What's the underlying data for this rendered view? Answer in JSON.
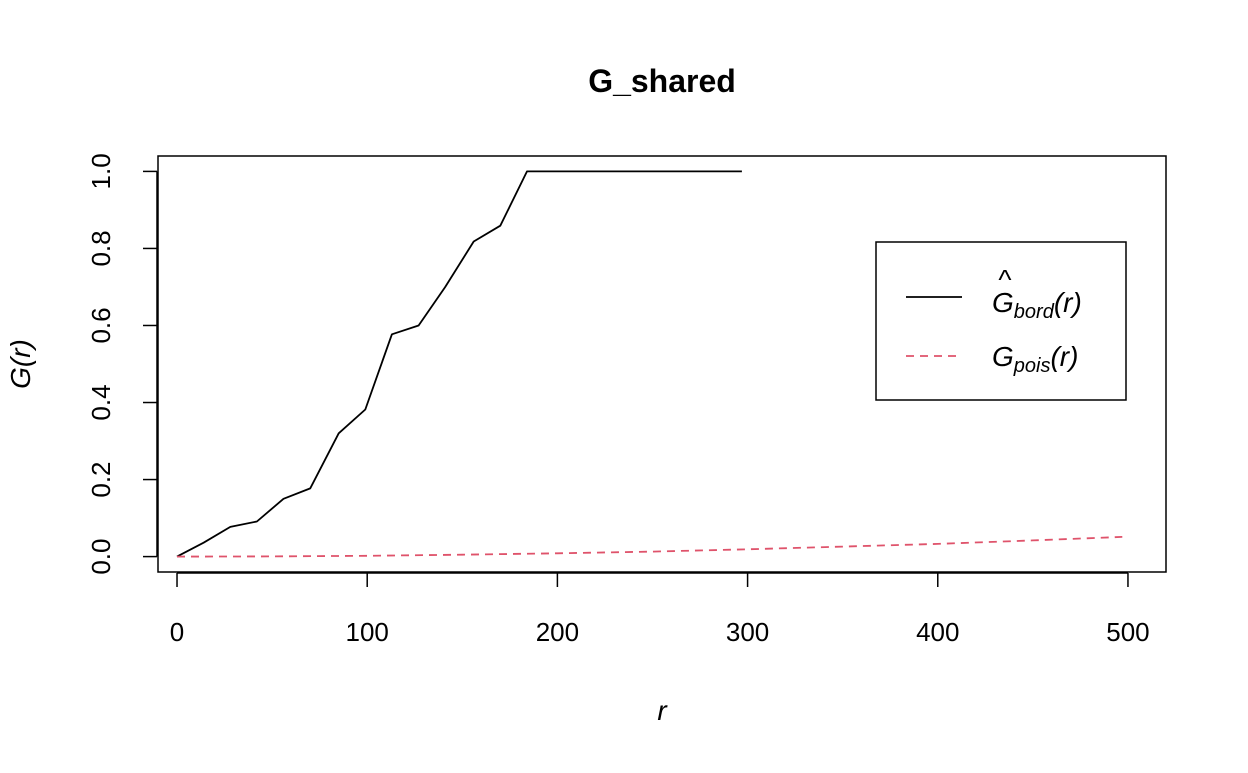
{
  "chart_data": {
    "type": "line",
    "title": "G_shared",
    "xlabel": "r",
    "ylabel": {
      "main": "G",
      "paren": "(r)"
    },
    "xlim": [
      -10,
      520
    ],
    "ylim": [
      -0.04,
      1.04
    ],
    "x_ticks": [
      0,
      100,
      200,
      300,
      400,
      500
    ],
    "y_ticks": [
      0.0,
      0.2,
      0.4,
      0.6,
      0.8,
      1.0
    ],
    "x_tick_labels": [
      "0",
      "100",
      "200",
      "300",
      "400",
      "500"
    ],
    "y_tick_labels": [
      "0.0",
      "0.2",
      "0.4",
      "0.6",
      "0.8",
      "1.0"
    ],
    "legend_position": "right",
    "series": [
      {
        "style": "solid",
        "color": "#000000",
        "x": [
          0,
          14,
          28,
          42,
          56,
          70,
          85,
          99,
          113,
          127,
          141,
          156,
          170,
          184,
          297
        ],
        "y": [
          0.0,
          0.036,
          0.077,
          0.091,
          0.15,
          0.177,
          0.32,
          0.382,
          0.577,
          0.6,
          0.7,
          0.818,
          0.859,
          1.0,
          1.0
        ]
      },
      {
        "style": "dashed",
        "color": "#DF536B",
        "x": [
          0,
          50,
          100,
          150,
          200,
          250,
          300,
          350,
          400,
          450,
          497
        ],
        "y": [
          0.0,
          0.0005,
          0.002,
          0.005,
          0.0085,
          0.013,
          0.019,
          0.026,
          0.033,
          0.042,
          0.051
        ]
      }
    ],
    "legend": [
      {
        "symbol": "G",
        "hat": "^",
        "sub": "bord",
        "suffix": "(r)"
      },
      {
        "symbol": "G",
        "hat": "",
        "sub": "pois",
        "suffix": "(r)"
      }
    ]
  }
}
